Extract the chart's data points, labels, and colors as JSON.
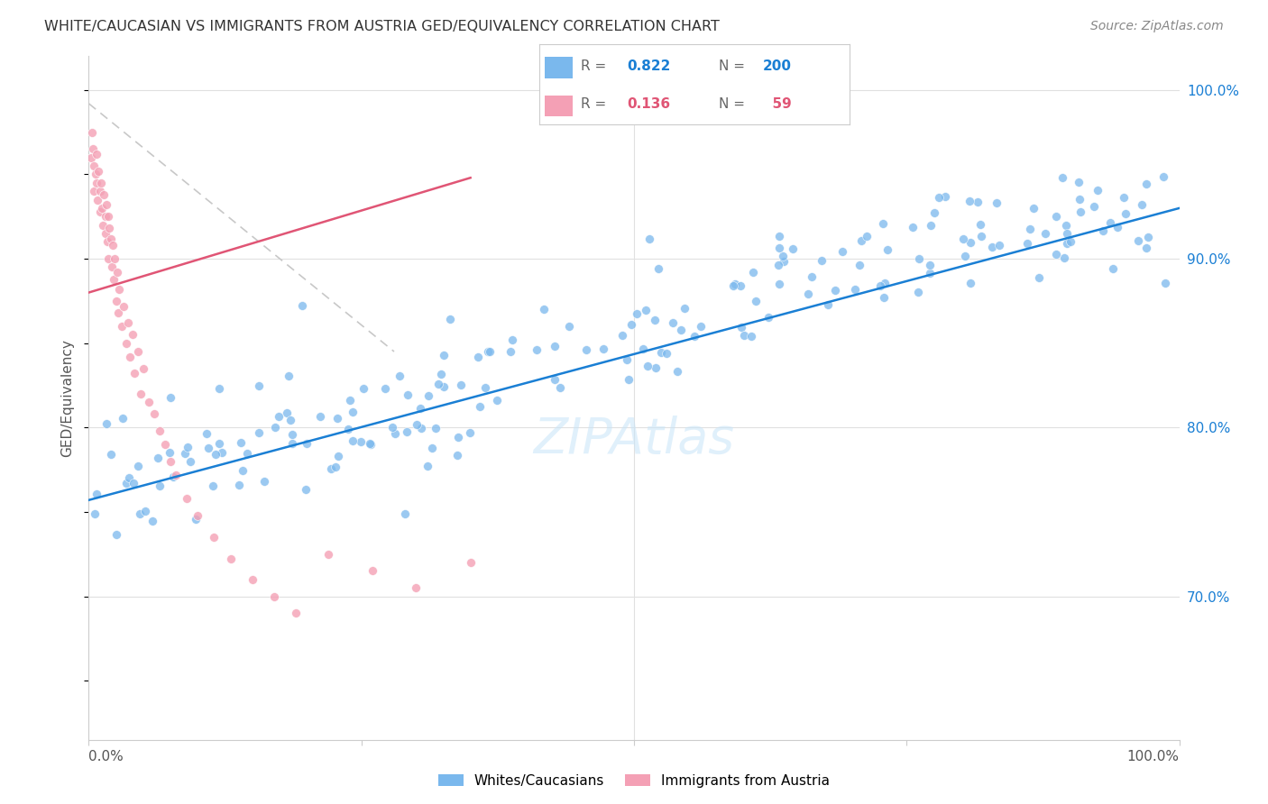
{
  "title": "WHITE/CAUCASIAN VS IMMIGRANTS FROM AUSTRIA GED/EQUIVALENCY CORRELATION CHART",
  "source": "Source: ZipAtlas.com",
  "ylabel": "GED/Equivalency",
  "watermark": "ZIPAtlas",
  "legend_blue_R": "0.822",
  "legend_blue_N": "200",
  "legend_pink_R": "0.136",
  "legend_pink_N": "59",
  "blue_color": "#7ab8ed",
  "pink_color": "#f4a0b5",
  "trendline_blue_color": "#1a7fd4",
  "trendline_pink_color": "#e05575",
  "trendline_diagonal_color": "#c8c8c8",
  "grid_color": "#e0e0e0",
  "right_ytick_labels": [
    "70.0%",
    "80.0%",
    "90.0%",
    "100.0%"
  ],
  "right_ytick_positions": [
    0.7,
    0.8,
    0.9,
    1.0
  ],
  "ymin": 0.615,
  "ymax": 1.02,
  "xmin": 0.0,
  "xmax": 1.0
}
